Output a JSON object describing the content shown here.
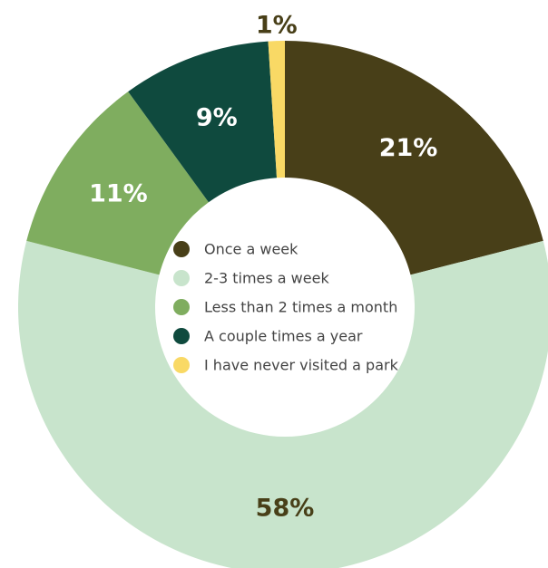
{
  "chart_data": {
    "type": "pie",
    "donut": true,
    "legend_position": "center",
    "categories": [
      "Once a week",
      "2-3 times a week",
      "Less than 2 times a month",
      "A couple times a year",
      "I have never visited a park"
    ],
    "values": [
      21,
      58,
      11,
      9,
      1
    ],
    "labels": [
      "21%",
      "58%",
      "11%",
      "9%",
      "1%"
    ],
    "colors": [
      "#483f18",
      "#c8e4cc",
      "#7fad5f",
      "#0f4a3e",
      "#f9d965"
    ],
    "label_colors": [
      "#ffffff",
      "#483f18",
      "#ffffff",
      "#ffffff",
      "#483f18"
    ]
  }
}
